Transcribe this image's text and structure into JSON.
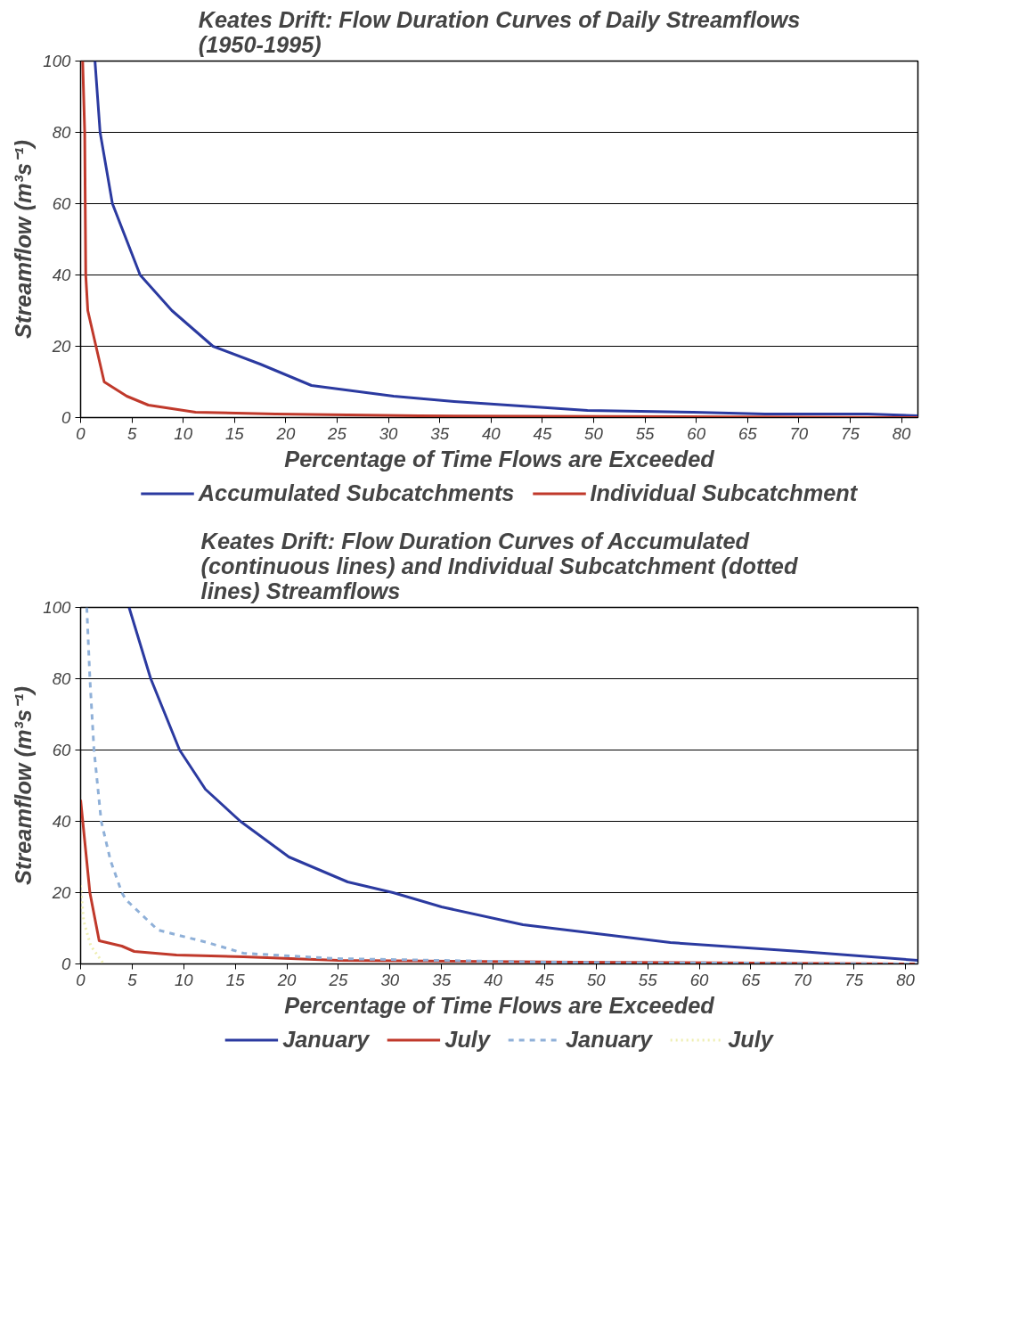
{
  "chart_data": [
    {
      "type": "line",
      "title": "Keates Drift: Flow Duration Curves of Daily Streamflows (1950-1995)",
      "xlabel": "Percentage of Time Flows are Exceeded",
      "ylabel": "Streamflow (m³s⁻¹)",
      "xlim": [
        0,
        81.6
      ],
      "ylim": [
        0,
        100
      ],
      "xticks": [
        0,
        5,
        10,
        15,
        20,
        25,
        30,
        35,
        40,
        45,
        50,
        55,
        60,
        65,
        70,
        75,
        80
      ],
      "yticks": [
        0,
        20,
        40,
        60,
        80,
        100
      ],
      "grid": "y",
      "legend": "bottom",
      "line_style": "solid",
      "series": [
        {
          "name": "Accumulated Subcatchments",
          "color": "#2b3aa0",
          "x": [
            1.4,
            1.9,
            3.1,
            5.8,
            8.9,
            12.9,
            17.5,
            22.5,
            30.5,
            36.4,
            49.4,
            59.7,
            66.7,
            76.7,
            81.6
          ],
          "values": [
            100,
            80,
            60,
            40,
            30,
            20,
            15,
            9,
            6,
            4.5,
            2,
            1.5,
            1,
            1,
            0.5
          ]
        },
        {
          "name": "Individual Subcatchment",
          "color": "#c0392b",
          "x": [
            0.2,
            0.4,
            0.5,
            0.7,
            1.5,
            2.3,
            4.5,
            6.6,
            11.2,
            19,
            33,
            81.6
          ],
          "values": [
            100,
            80,
            40,
            30,
            20,
            10,
            6,
            3.5,
            1.5,
            1,
            0.5,
            0
          ]
        }
      ]
    },
    {
      "type": "line",
      "title": "Keates Drift: Flow Duration Curves of Accumulated (continuous lines) and Individual Subcatchment (dotted lines) Streamflows",
      "xlabel": "Percentage of Time Flows are Exceeded",
      "ylabel": "Streamflow (m³s⁻¹)",
      "xlim": [
        0,
        81.2
      ],
      "ylim": [
        0,
        100
      ],
      "xticks": [
        0,
        5,
        10,
        15,
        20,
        25,
        30,
        35,
        40,
        45,
        50,
        55,
        60,
        65,
        70,
        75,
        80
      ],
      "yticks": [
        0,
        20,
        40,
        60,
        80,
        100
      ],
      "grid": "y",
      "legend": "bottom",
      "series": [
        {
          "name": "January",
          "color": "#2b3aa0",
          "line_style": "solid",
          "x": [
            4.7,
            6.8,
            9.6,
            12.1,
            15.5,
            20.2,
            25.9,
            30.3,
            35,
            42.9,
            57.2,
            69.8,
            81.2
          ],
          "values": [
            100,
            80,
            60,
            49,
            40,
            30,
            23,
            20,
            16,
            11,
            6,
            3.5,
            1
          ]
        },
        {
          "name": "July",
          "color": "#c0392b",
          "line_style": "solid",
          "x": [
            0,
            0.9,
            1.8,
            4.0,
            5.2,
            9.3,
            15.8,
            25,
            48,
            81.2
          ],
          "values": [
            46,
            20,
            6.5,
            5,
            3.5,
            2.5,
            2,
            1,
            0.5,
            0
          ]
        },
        {
          "name": "January",
          "color": "#8fb0d8",
          "line_style": "dashed",
          "x": [
            0.6,
            0.9,
            1.3,
            2.0,
            2.9,
            4.0,
            4.4,
            7.5,
            12.3,
            15.8,
            24.7,
            45,
            81.2
          ],
          "values": [
            100,
            80,
            60,
            40,
            29,
            20,
            18,
            9.5,
            6,
            3,
            1.5,
            0.5,
            0
          ]
        },
        {
          "name": "July",
          "color": "#eeeeb0",
          "line_style": "dotted",
          "x": [
            0,
            0.3,
            1.0,
            2.0,
            2.2
          ],
          "values": [
            22,
            12,
            5,
            1,
            0
          ]
        }
      ]
    }
  ]
}
